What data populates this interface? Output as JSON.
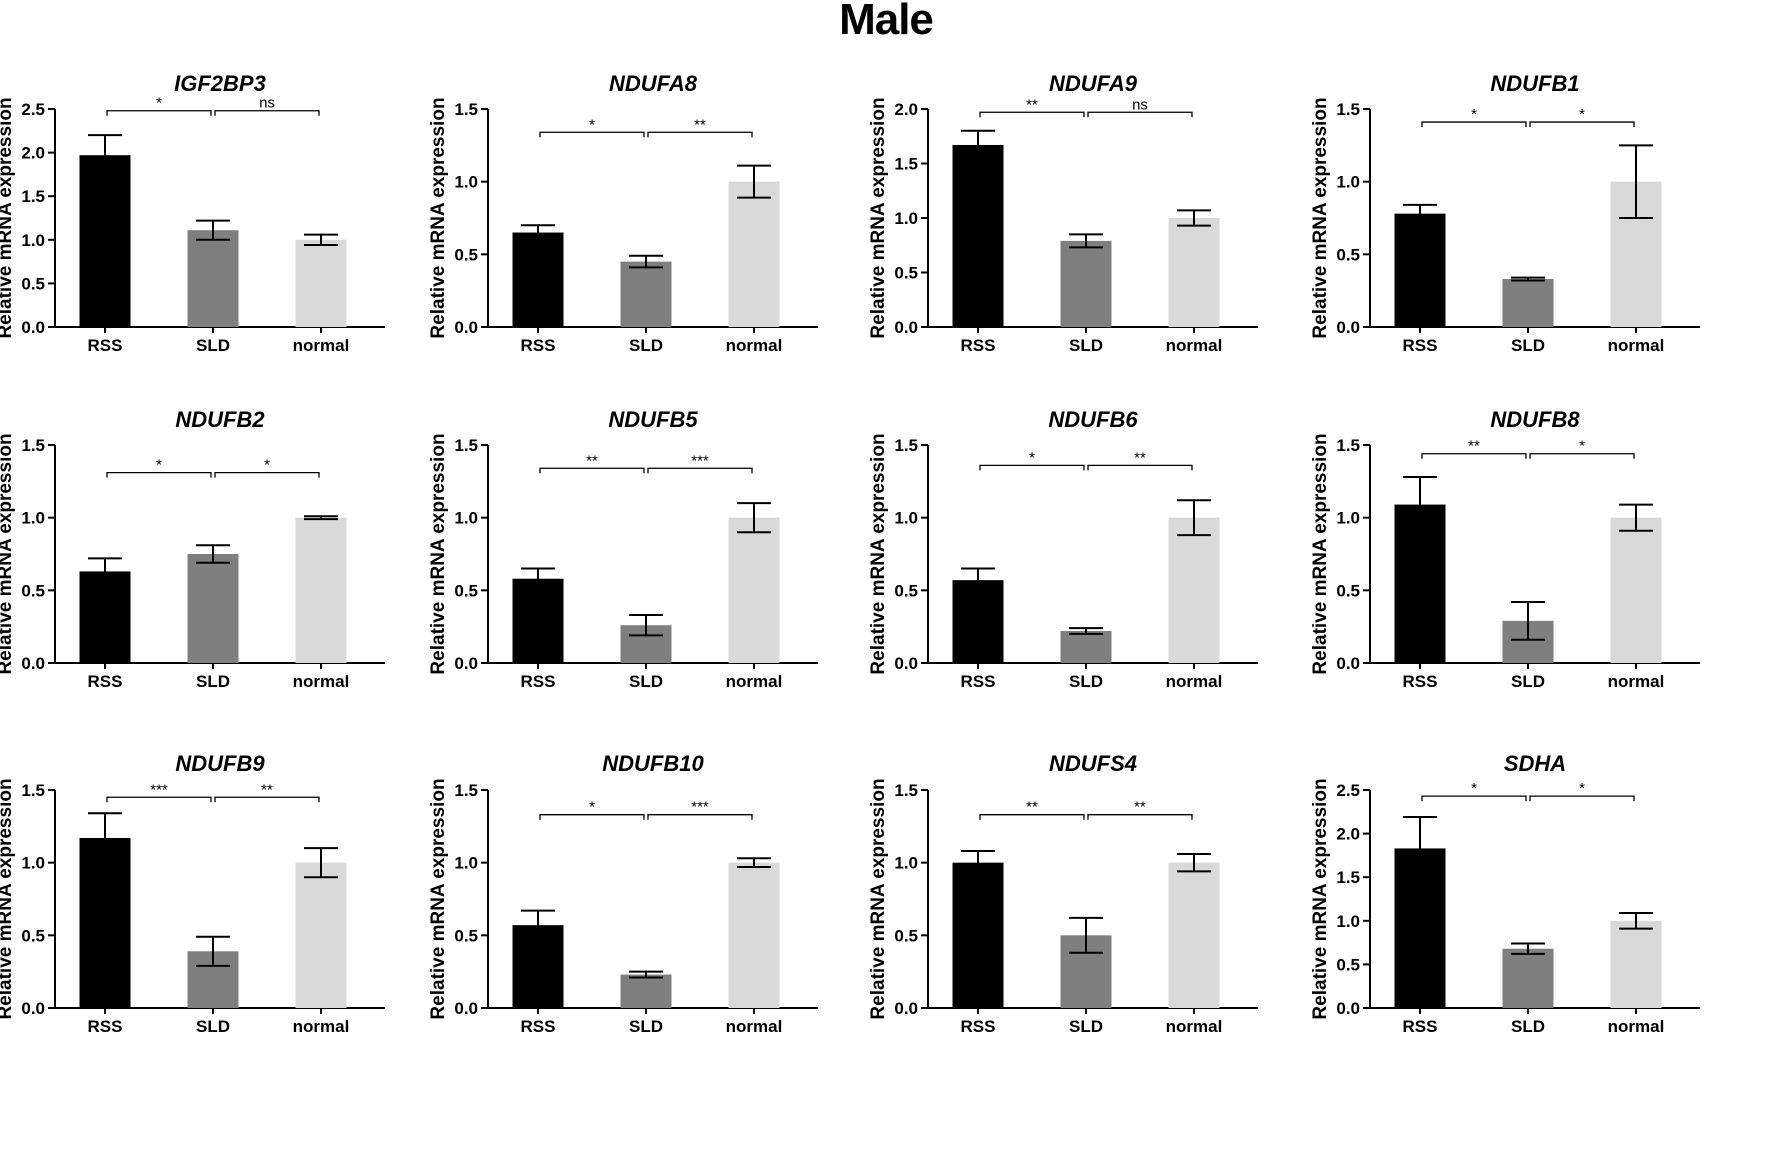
{
  "figure": {
    "title": "Male"
  },
  "colors": {
    "RSS": "#000000",
    "SLD": "#7f7f7f",
    "normal": "#d9d9d9"
  },
  "chart_data": [
    {
      "type": "bar",
      "title": "IGF2BP3",
      "ylabel": "Relative mRNA expression",
      "categories": [
        "RSS",
        "SLD",
        "normal"
      ],
      "values": [
        1.97,
        1.11,
        1.0
      ],
      "errors": [
        0.23,
        0.11,
        0.06
      ],
      "ylim": [
        0,
        2.5
      ],
      "yticks": [
        "0.0",
        "0.5",
        "1.0",
        "1.5",
        "2.0",
        "2.5"
      ],
      "comparisons": [
        {
          "from": 0,
          "to": 1,
          "label": "*",
          "y": 2.48
        },
        {
          "from": 1,
          "to": 2,
          "label": "ns",
          "y": 2.48
        }
      ]
    },
    {
      "type": "bar",
      "title": "NDUFA8",
      "ylabel": "Relative mRNA expression",
      "categories": [
        "RSS",
        "SLD",
        "normal"
      ],
      "values": [
        0.65,
        0.45,
        1.0
      ],
      "errors": [
        0.05,
        0.04,
        0.11
      ],
      "ylim": [
        0,
        1.5
      ],
      "yticks": [
        "0.0",
        "0.5",
        "1.0",
        "1.5"
      ],
      "comparisons": [
        {
          "from": 0,
          "to": 1,
          "label": "*",
          "y": 1.34
        },
        {
          "from": 1,
          "to": 2,
          "label": "**",
          "y": 1.34
        }
      ]
    },
    {
      "type": "bar",
      "title": "NDUFA9",
      "ylabel": "Relative mRNA expression",
      "categories": [
        "RSS",
        "SLD",
        "normal"
      ],
      "values": [
        1.67,
        0.79,
        1.0
      ],
      "errors": [
        0.13,
        0.06,
        0.07
      ],
      "ylim": [
        0,
        2.0
      ],
      "yticks": [
        "0.0",
        "0.5",
        "1.0",
        "1.5",
        "2.0"
      ],
      "comparisons": [
        {
          "from": 0,
          "to": 1,
          "label": "**",
          "y": 1.97
        },
        {
          "from": 1,
          "to": 2,
          "label": "ns",
          "y": 1.97
        }
      ]
    },
    {
      "type": "bar",
      "title": "NDUFB1",
      "ylabel": "Relative mRNA expression",
      "categories": [
        "RSS",
        "SLD",
        "normal"
      ],
      "values": [
        0.78,
        0.33,
        1.0
      ],
      "errors": [
        0.06,
        0.01,
        0.25
      ],
      "ylim": [
        0,
        1.5
      ],
      "yticks": [
        "0.0",
        "0.5",
        "1.0",
        "1.5"
      ],
      "comparisons": [
        {
          "from": 0,
          "to": 1,
          "label": "*",
          "y": 1.41
        },
        {
          "from": 1,
          "to": 2,
          "label": "*",
          "y": 1.41
        }
      ]
    },
    {
      "type": "bar",
      "title": "NDUFB2",
      "ylabel": "Relative mRNA expression",
      "categories": [
        "RSS",
        "SLD",
        "normal"
      ],
      "values": [
        0.63,
        0.75,
        1.0
      ],
      "errors": [
        0.09,
        0.06,
        0.01
      ],
      "ylim": [
        0,
        1.5
      ],
      "yticks": [
        "0.0",
        "0.5",
        "1.0",
        "1.5"
      ],
      "comparisons": [
        {
          "from": 0,
          "to": 1,
          "label": "*",
          "y": 1.31
        },
        {
          "from": 1,
          "to": 2,
          "label": "*",
          "y": 1.31
        }
      ]
    },
    {
      "type": "bar",
      "title": "NDUFB5",
      "ylabel": "Relative mRNA expression",
      "categories": [
        "RSS",
        "SLD",
        "normal"
      ],
      "values": [
        0.58,
        0.26,
        1.0
      ],
      "errors": [
        0.07,
        0.07,
        0.1
      ],
      "ylim": [
        0,
        1.5
      ],
      "yticks": [
        "0.0",
        "0.5",
        "1.0",
        "1.5"
      ],
      "comparisons": [
        {
          "from": 0,
          "to": 1,
          "label": "**",
          "y": 1.34
        },
        {
          "from": 1,
          "to": 2,
          "label": "***",
          "y": 1.34
        }
      ]
    },
    {
      "type": "bar",
      "title": "NDUFB6",
      "ylabel": "Relative mRNA expression",
      "categories": [
        "RSS",
        "SLD",
        "normal"
      ],
      "values": [
        0.57,
        0.22,
        1.0
      ],
      "errors": [
        0.08,
        0.02,
        0.12
      ],
      "ylim": [
        0,
        1.5
      ],
      "yticks": [
        "0.0",
        "0.5",
        "1.0",
        "1.5"
      ],
      "comparisons": [
        {
          "from": 0,
          "to": 1,
          "label": "*",
          "y": 1.36
        },
        {
          "from": 1,
          "to": 2,
          "label": "**",
          "y": 1.36
        }
      ]
    },
    {
      "type": "bar",
      "title": "NDUFB8",
      "ylabel": "Relative mRNA expression",
      "categories": [
        "RSS",
        "SLD",
        "normal"
      ],
      "values": [
        1.09,
        0.29,
        1.0
      ],
      "errors": [
        0.19,
        0.13,
        0.09
      ],
      "ylim": [
        0,
        1.5
      ],
      "yticks": [
        "0.0",
        "0.5",
        "1.0",
        "1.5"
      ],
      "comparisons": [
        {
          "from": 0,
          "to": 1,
          "label": "**",
          "y": 1.44
        },
        {
          "from": 1,
          "to": 2,
          "label": "*",
          "y": 1.44
        }
      ]
    },
    {
      "type": "bar",
      "title": "NDUFB9",
      "ylabel": "Relative mRNA expression",
      "categories": [
        "RSS",
        "SLD",
        "normal"
      ],
      "values": [
        1.17,
        0.39,
        1.0
      ],
      "errors": [
        0.17,
        0.1,
        0.1
      ],
      "ylim": [
        0,
        1.5
      ],
      "yticks": [
        "0.0",
        "0.5",
        "1.0",
        "1.5"
      ],
      "comparisons": [
        {
          "from": 0,
          "to": 1,
          "label": "***",
          "y": 1.45
        },
        {
          "from": 1,
          "to": 2,
          "label": "**",
          "y": 1.45
        }
      ]
    },
    {
      "type": "bar",
      "title": "NDUFB10",
      "ylabel": "Relative mRNA expression",
      "categories": [
        "RSS",
        "SLD",
        "normal"
      ],
      "values": [
        0.57,
        0.23,
        1.0
      ],
      "errors": [
        0.1,
        0.02,
        0.03
      ],
      "ylim": [
        0,
        1.5
      ],
      "yticks": [
        "0.0",
        "0.5",
        "1.0",
        "1.5"
      ],
      "comparisons": [
        {
          "from": 0,
          "to": 1,
          "label": "*",
          "y": 1.33
        },
        {
          "from": 1,
          "to": 2,
          "label": "***",
          "y": 1.33
        }
      ]
    },
    {
      "type": "bar",
      "title": "NDUFS4",
      "ylabel": "Relative mRNA expression",
      "categories": [
        "RSS",
        "SLD",
        "normal"
      ],
      "values": [
        1.0,
        0.5,
        1.0
      ],
      "errors": [
        0.08,
        0.12,
        0.06
      ],
      "ylim": [
        0,
        1.5
      ],
      "yticks": [
        "0.0",
        "0.5",
        "1.0",
        "1.5"
      ],
      "comparisons": [
        {
          "from": 0,
          "to": 1,
          "label": "**",
          "y": 1.33
        },
        {
          "from": 1,
          "to": 2,
          "label": "**",
          "y": 1.33
        }
      ]
    },
    {
      "type": "bar",
      "title": "SDHA",
      "ylabel": "Relative mRNA expression",
      "categories": [
        "RSS",
        "SLD",
        "normal"
      ],
      "values": [
        1.83,
        0.68,
        1.0
      ],
      "errors": [
        0.36,
        0.06,
        0.09
      ],
      "ylim": [
        0,
        2.5
      ],
      "yticks": [
        "0.0",
        "0.5",
        "1.0",
        "1.5",
        "2.0",
        "2.5"
      ],
      "comparisons": [
        {
          "from": 0,
          "to": 1,
          "label": "*",
          "y": 2.43
        },
        {
          "from": 1,
          "to": 2,
          "label": "*",
          "y": 2.43
        }
      ]
    }
  ]
}
